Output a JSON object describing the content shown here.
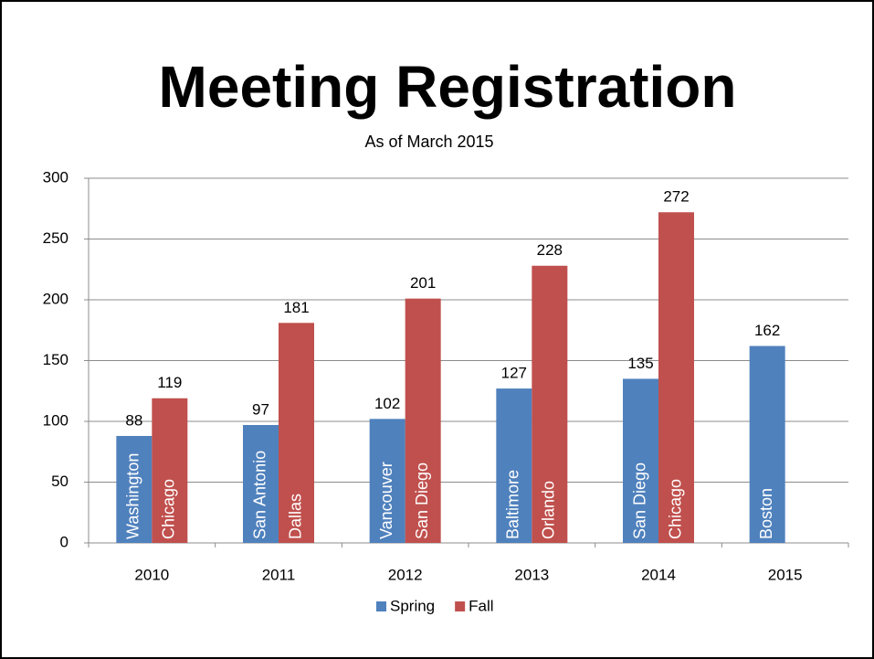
{
  "chart_data": {
    "type": "bar",
    "title": "Meeting Registration",
    "subtitle": "As of March 2015",
    "categories": [
      "2010",
      "2011",
      "2012",
      "2013",
      "2014",
      "2015"
    ],
    "series": [
      {
        "name": "Spring",
        "color": "#4f81bd",
        "values": [
          88,
          97,
          102,
          127,
          135,
          162
        ],
        "bar_labels": [
          "Washington",
          "San Antonio",
          "Vancouver",
          "Baltimore",
          "San Diego",
          "Boston"
        ]
      },
      {
        "name": "Fall",
        "color": "#c0504d",
        "values": [
          119,
          181,
          201,
          228,
          272,
          null
        ],
        "bar_labels": [
          "Chicago",
          "Dallas",
          "San Diego",
          "Orlando",
          "Chicago",
          null
        ]
      }
    ],
    "ylim": [
      0,
      300
    ],
    "yticks": [
      0,
      50,
      100,
      150,
      200,
      250,
      300
    ],
    "grid": true,
    "legend": "bottom"
  }
}
